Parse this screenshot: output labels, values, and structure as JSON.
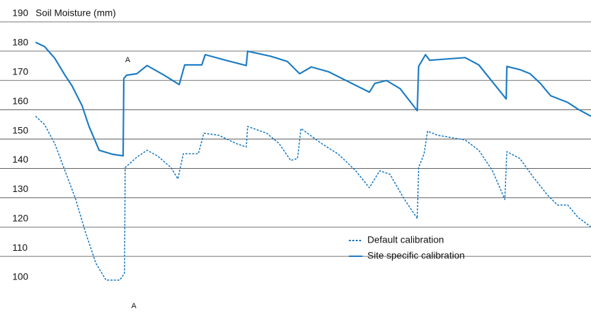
{
  "chart_data": {
    "type": "line",
    "title": "Soil Moisture (mm)",
    "ylim": [
      100,
      190
    ],
    "yticks": [
      100,
      110,
      120,
      130,
      140,
      150,
      160,
      170,
      180,
      190
    ],
    "xlim": [
      0,
      812
    ],
    "grid": true,
    "legend": "lower right",
    "annotations": [
      "A",
      "A"
    ],
    "series": [
      {
        "name": "Default calibration",
        "color": "#1a7bc4",
        "style": "dashed",
        "x": [
          0,
          13,
          28,
          43,
          58,
          73,
          88,
          103,
          123,
          130,
          131,
          148,
          163,
          178,
          198,
          208,
          216,
          238,
          246,
          268,
          293,
          308,
          310,
          338,
          356,
          373,
          383,
          388,
          418,
          443,
          468,
          488,
          503,
          518,
          538,
          558,
          560,
          568,
          573,
          588,
          628,
          648,
          668,
          686,
          689,
          708,
          728,
          748,
          763,
          778,
          793,
          812
        ],
        "values": [
          157.8,
          155,
          148.5,
          139.2,
          129.9,
          118.2,
          107.7,
          101.9,
          101.9,
          104.2,
          140.3,
          143.8,
          146.2,
          144.3,
          140.3,
          136.4,
          145,
          145,
          152,
          151.3,
          148.5,
          147.3,
          154.3,
          152,
          148.5,
          142.7,
          143.4,
          153.6,
          148.5,
          144.8,
          139.2,
          133.4,
          139.2,
          138,
          129.9,
          122.9,
          140.3,
          145,
          152.7,
          151.3,
          149.7,
          146.2,
          139.2,
          129.4,
          145.7,
          143.4,
          136.9,
          131,
          127.5,
          127.5,
          123.3,
          120
        ]
      },
      {
        "name": "Site specific calibration",
        "color": "#1a7bc4",
        "style": "solid",
        "x": [
          0,
          13,
          28,
          43,
          53,
          68,
          78,
          93,
          113,
          128,
          129,
          133,
          148,
          163,
          188,
          210,
          218,
          243,
          248,
          278,
          308,
          310,
          343,
          353,
          368,
          386,
          403,
          428,
          458,
          488,
          496,
          513,
          533,
          558,
          560,
          570,
          576,
          628,
          648,
          668,
          688,
          689,
          708,
          723,
          738,
          753,
          778,
          793,
          812
        ],
        "values": [
          183,
          181.6,
          177.6,
          171.8,
          168.3,
          161.4,
          154.4,
          146.2,
          144.8,
          144.3,
          170.7,
          171.8,
          172.3,
          175.1,
          171.8,
          168.6,
          175.3,
          175.3,
          178.8,
          176.9,
          175.1,
          180,
          178.3,
          177.6,
          176.5,
          172.3,
          174.6,
          173,
          169.5,
          166,
          169,
          170,
          167.2,
          159.7,
          174.8,
          178.8,
          176.9,
          177.8,
          175.3,
          169.5,
          163.7,
          174.8,
          173.7,
          172.3,
          169,
          164.8,
          162.5,
          160.2,
          157.8
        ]
      }
    ]
  }
}
